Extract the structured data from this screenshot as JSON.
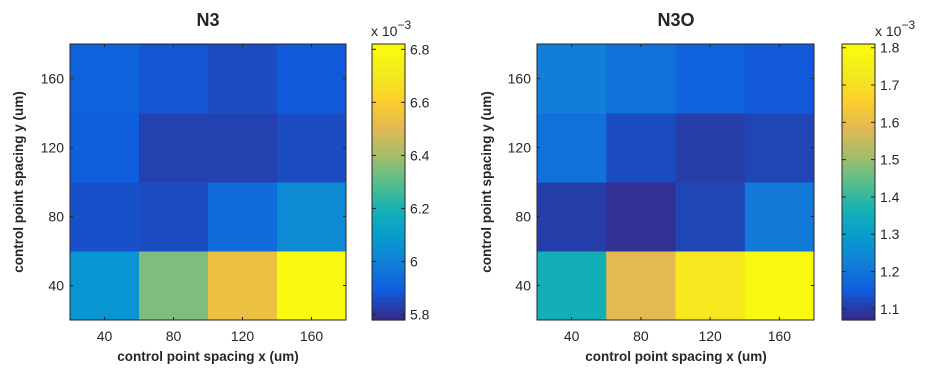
{
  "chart_data": [
    {
      "type": "heatmap",
      "title": "N3",
      "xlabel": "control point spacing x (um)",
      "ylabel": "control point spacing y (um)",
      "x_categories": [
        "40",
        "80",
        "120",
        "160"
      ],
      "y_categories": [
        "40",
        "80",
        "120",
        "160"
      ],
      "values": [
        [
          6.07,
          6.35,
          6.55,
          6.8
        ],
        [
          5.86,
          5.85,
          5.93,
          6.03
        ],
        [
          5.89,
          5.83,
          5.83,
          5.85
        ],
        [
          5.9,
          5.87,
          5.85,
          5.88
        ]
      ],
      "colorbar": {
        "min": 5.78,
        "max": 6.82,
        "ticks": [
          "5.8",
          "6",
          "6.2",
          "6.4",
          "6.6",
          "6.8"
        ],
        "tick_values": [
          5.8,
          6.0,
          6.2,
          6.4,
          6.6,
          6.8
        ],
        "multiplier": "x 10",
        "exponent": "−3"
      },
      "colormap": "parula"
    },
    {
      "type": "heatmap",
      "title": "N3O",
      "xlabel": "control point spacing x (um)",
      "ylabel": "control point spacing y (um)",
      "x_categories": [
        "40",
        "80",
        "120",
        "160"
      ],
      "y_categories": [
        "40",
        "80",
        "120",
        "160"
      ],
      "values": [
        [
          1.36,
          1.59,
          1.73,
          1.8
        ],
        [
          1.1,
          1.08,
          1.11,
          1.21
        ],
        [
          1.19,
          1.12,
          1.1,
          1.11
        ],
        [
          1.22,
          1.19,
          1.16,
          1.14
        ]
      ],
      "colorbar": {
        "min": 1.07,
        "max": 1.81,
        "ticks": [
          "1.1",
          "1.2",
          "1.3",
          "1.4",
          "1.5",
          "1.6",
          "1.7",
          "1.8"
        ],
        "tick_values": [
          1.1,
          1.2,
          1.3,
          1.4,
          1.5,
          1.6,
          1.7,
          1.8
        ],
        "multiplier": "x 10",
        "exponent": "−3"
      },
      "colormap": "parula"
    }
  ]
}
